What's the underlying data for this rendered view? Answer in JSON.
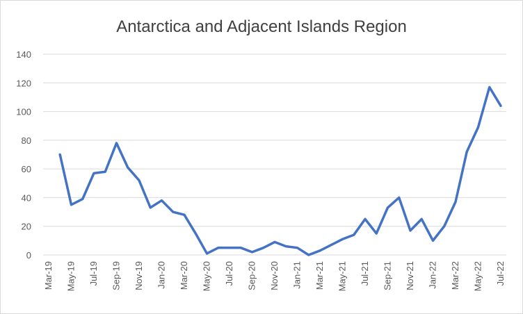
{
  "chart_data": {
    "type": "line",
    "title": "Antarctica and Adjacent Islands Region",
    "categories": [
      "Mar-19",
      null,
      "May-19",
      null,
      "Jul-19",
      null,
      "Sep-19",
      null,
      "Nov-19",
      null,
      "Jan-20",
      null,
      "Mar-20",
      null,
      "May-20",
      null,
      "Jul-20",
      null,
      "Sep-20",
      null,
      "Nov-20",
      null,
      "Jan-21",
      null,
      "Mar-21",
      null,
      "May-21",
      null,
      "Jul-21",
      null,
      "Sep-21",
      null,
      "Nov-21",
      null,
      "Jan-22",
      null,
      "Mar-22",
      null,
      "May-22",
      null,
      "Jul-22"
    ],
    "series": [
      {
        "name": "Antarctica and Adjacent Islands Region",
        "color": "#4472c4",
        "values": [
          null,
          70,
          35,
          39,
          57,
          58,
          78,
          61,
          52,
          33,
          38,
          30,
          28,
          15,
          1,
          5,
          5,
          5,
          2,
          5,
          9,
          6,
          5,
          0,
          3,
          7,
          11,
          14,
          25,
          15,
          33,
          40,
          17,
          25,
          10,
          20,
          37,
          72,
          89,
          117,
          104
        ]
      }
    ],
    "ylim": [
      0,
      140
    ],
    "yticks": [
      0,
      20,
      40,
      60,
      80,
      100,
      120,
      140
    ],
    "grid": true
  }
}
